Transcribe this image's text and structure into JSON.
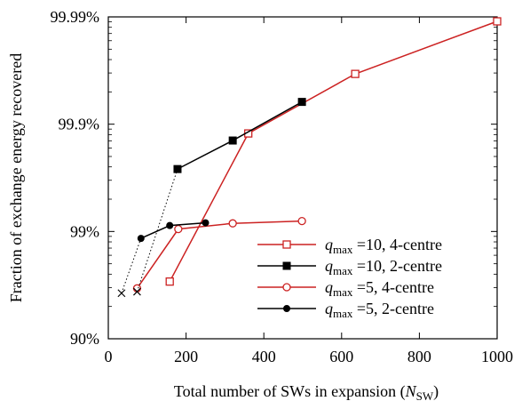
{
  "chart_data": {
    "type": "line",
    "xlabel_main": "Total number of SWs in expansion (",
    "xlabel_var": "N",
    "xlabel_sub": "SW",
    "xlabel_close": ")",
    "ylabel": "Fraction of exchange energy recovered",
    "xlim": [
      0,
      1000
    ],
    "x_ticks": [
      0,
      200,
      400,
      600,
      800,
      1000
    ],
    "x_tick_labels": [
      "0",
      "200",
      "400",
      "600",
      "800",
      "1000"
    ],
    "y_scale": "log-of-missing-fraction",
    "y_ticks": [
      0.9,
      0.99,
      0.999,
      0.9999
    ],
    "y_tick_labels": [
      "90%",
      "99%",
      "99.9%",
      "99.99%"
    ],
    "grid": false,
    "legend_position": "bottom-right",
    "series": [
      {
        "name": "q_max =10, 4-centre",
        "legend_var": "q",
        "legend_sub": "max",
        "legend_rest": " =10, 4-centre",
        "color": "#cc2222",
        "marker": "open-square",
        "x": [
          158,
          360,
          635,
          1000
        ],
        "y": [
          0.9707,
          0.99878,
          0.99966,
          0.99989
        ]
      },
      {
        "name": "q_max =10, 2-centre",
        "legend_var": "q",
        "legend_sub": "max",
        "legend_rest": " =10, 2-centre",
        "color": "#000000",
        "marker": "filled-square",
        "x": [
          178,
          320,
          498
        ],
        "y": [
          0.99738,
          0.99858,
          0.99938
        ]
      },
      {
        "name": "q_max =5, 4-centre",
        "legend_var": "q",
        "legend_sub": "max",
        "legend_rest": " =5, 4-centre",
        "color": "#cc2222",
        "marker": "open-circle",
        "x": [
          74,
          180,
          320,
          498
        ],
        "y": [
          0.9661,
          0.9905,
          0.9916,
          0.992
        ]
      },
      {
        "name": "q_max =5, 2-centre",
        "legend_var": "q",
        "legend_sub": "max",
        "legend_rest": " =5, 2-centre",
        "color": "#000000",
        "marker": "filled-circle",
        "x": [
          84,
          158,
          250
        ],
        "y": [
          0.9884,
          0.9912,
          0.9917
        ]
      }
    ],
    "extrapolation": {
      "marker": "x",
      "line_style": "dotted",
      "color": "#000000",
      "x": [
        34,
        74
      ],
      "y": [
        0.9624,
        0.9636
      ],
      "connects_to": [
        [
          84,
          0.9884
        ],
        [
          178,
          0.99738
        ]
      ]
    }
  }
}
